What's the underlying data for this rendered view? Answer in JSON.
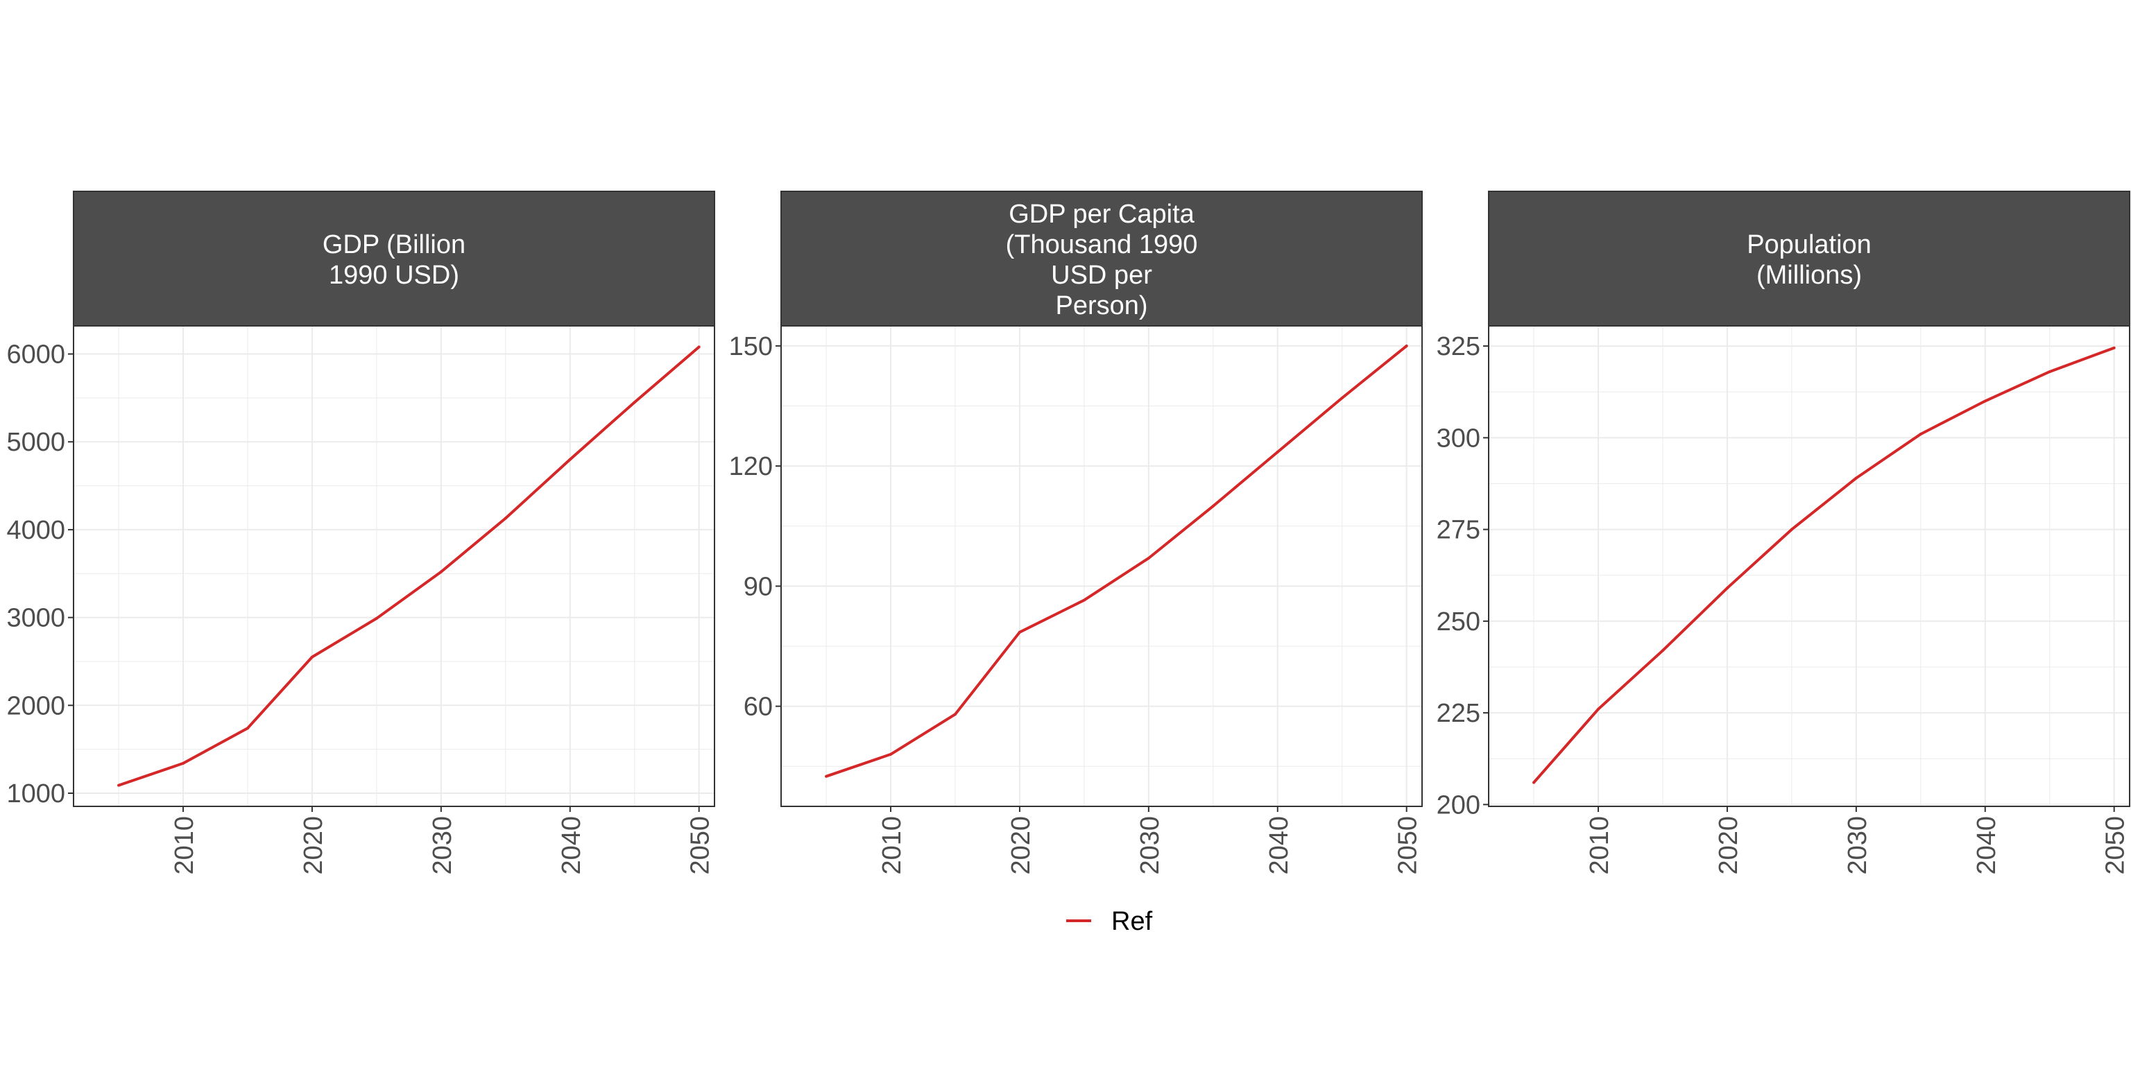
{
  "colors": {
    "series": "#d62728",
    "strip_bg": "#4d4d4d",
    "strip_text": "#ffffff",
    "axis_text": "#4d4d4d",
    "grid": "#ebebeb",
    "panel_border": "#333333"
  },
  "legend": {
    "position": "bottom",
    "items": [
      {
        "label": "Ref"
      }
    ]
  },
  "chart_data": [
    {
      "type": "line",
      "strip_title_lines": [
        "GDP (Billion",
        "1990 USD)"
      ],
      "x": [
        2005,
        2010,
        2015,
        2020,
        2025,
        2030,
        2035,
        2040,
        2045,
        2050
      ],
      "series": [
        {
          "name": "Ref",
          "values": [
            1090,
            1340,
            1740,
            2550,
            2990,
            3520,
            4130,
            4800,
            5450,
            6080
          ]
        }
      ],
      "xlim": [
        2001.5,
        2051.2
      ],
      "ylim": [
        850,
        6320
      ],
      "xticks": [
        2010,
        2020,
        2030,
        2040,
        2050
      ],
      "yticks": [
        1000,
        2000,
        3000,
        4000,
        5000,
        6000
      ],
      "grid": true
    },
    {
      "type": "line",
      "strip_title_lines": [
        "GDP per Capita",
        "(Thousand 1990",
        "USD per",
        "Person)"
      ],
      "x": [
        2005,
        2010,
        2015,
        2020,
        2025,
        2030,
        2035,
        2040,
        2045,
        2050
      ],
      "series": [
        {
          "name": "Ref",
          "values": [
            42.5,
            48,
            58,
            78.5,
            86.5,
            97,
            110,
            123.5,
            137,
            150
          ]
        }
      ],
      "xlim": [
        2001.5,
        2051.2
      ],
      "ylim": [
        35,
        155
      ],
      "xticks": [
        2010,
        2020,
        2030,
        2040,
        2050
      ],
      "yticks": [
        60,
        90,
        120,
        150
      ],
      "grid": true
    },
    {
      "type": "line",
      "strip_title_lines": [
        "Population",
        "(Millions)"
      ],
      "x": [
        2005,
        2010,
        2015,
        2020,
        2025,
        2030,
        2035,
        2040,
        2045,
        2050
      ],
      "series": [
        {
          "name": "Ref",
          "values": [
            206,
            226,
            242,
            259,
            275,
            289,
            301,
            310,
            318,
            324.5
          ]
        }
      ],
      "xlim": [
        2001.5,
        2051.2
      ],
      "ylim": [
        199.5,
        330.5
      ],
      "xticks": [
        2010,
        2020,
        2030,
        2040,
        2050
      ],
      "yticks": [
        200,
        225,
        250,
        275,
        300,
        325
      ],
      "grid": true
    }
  ]
}
